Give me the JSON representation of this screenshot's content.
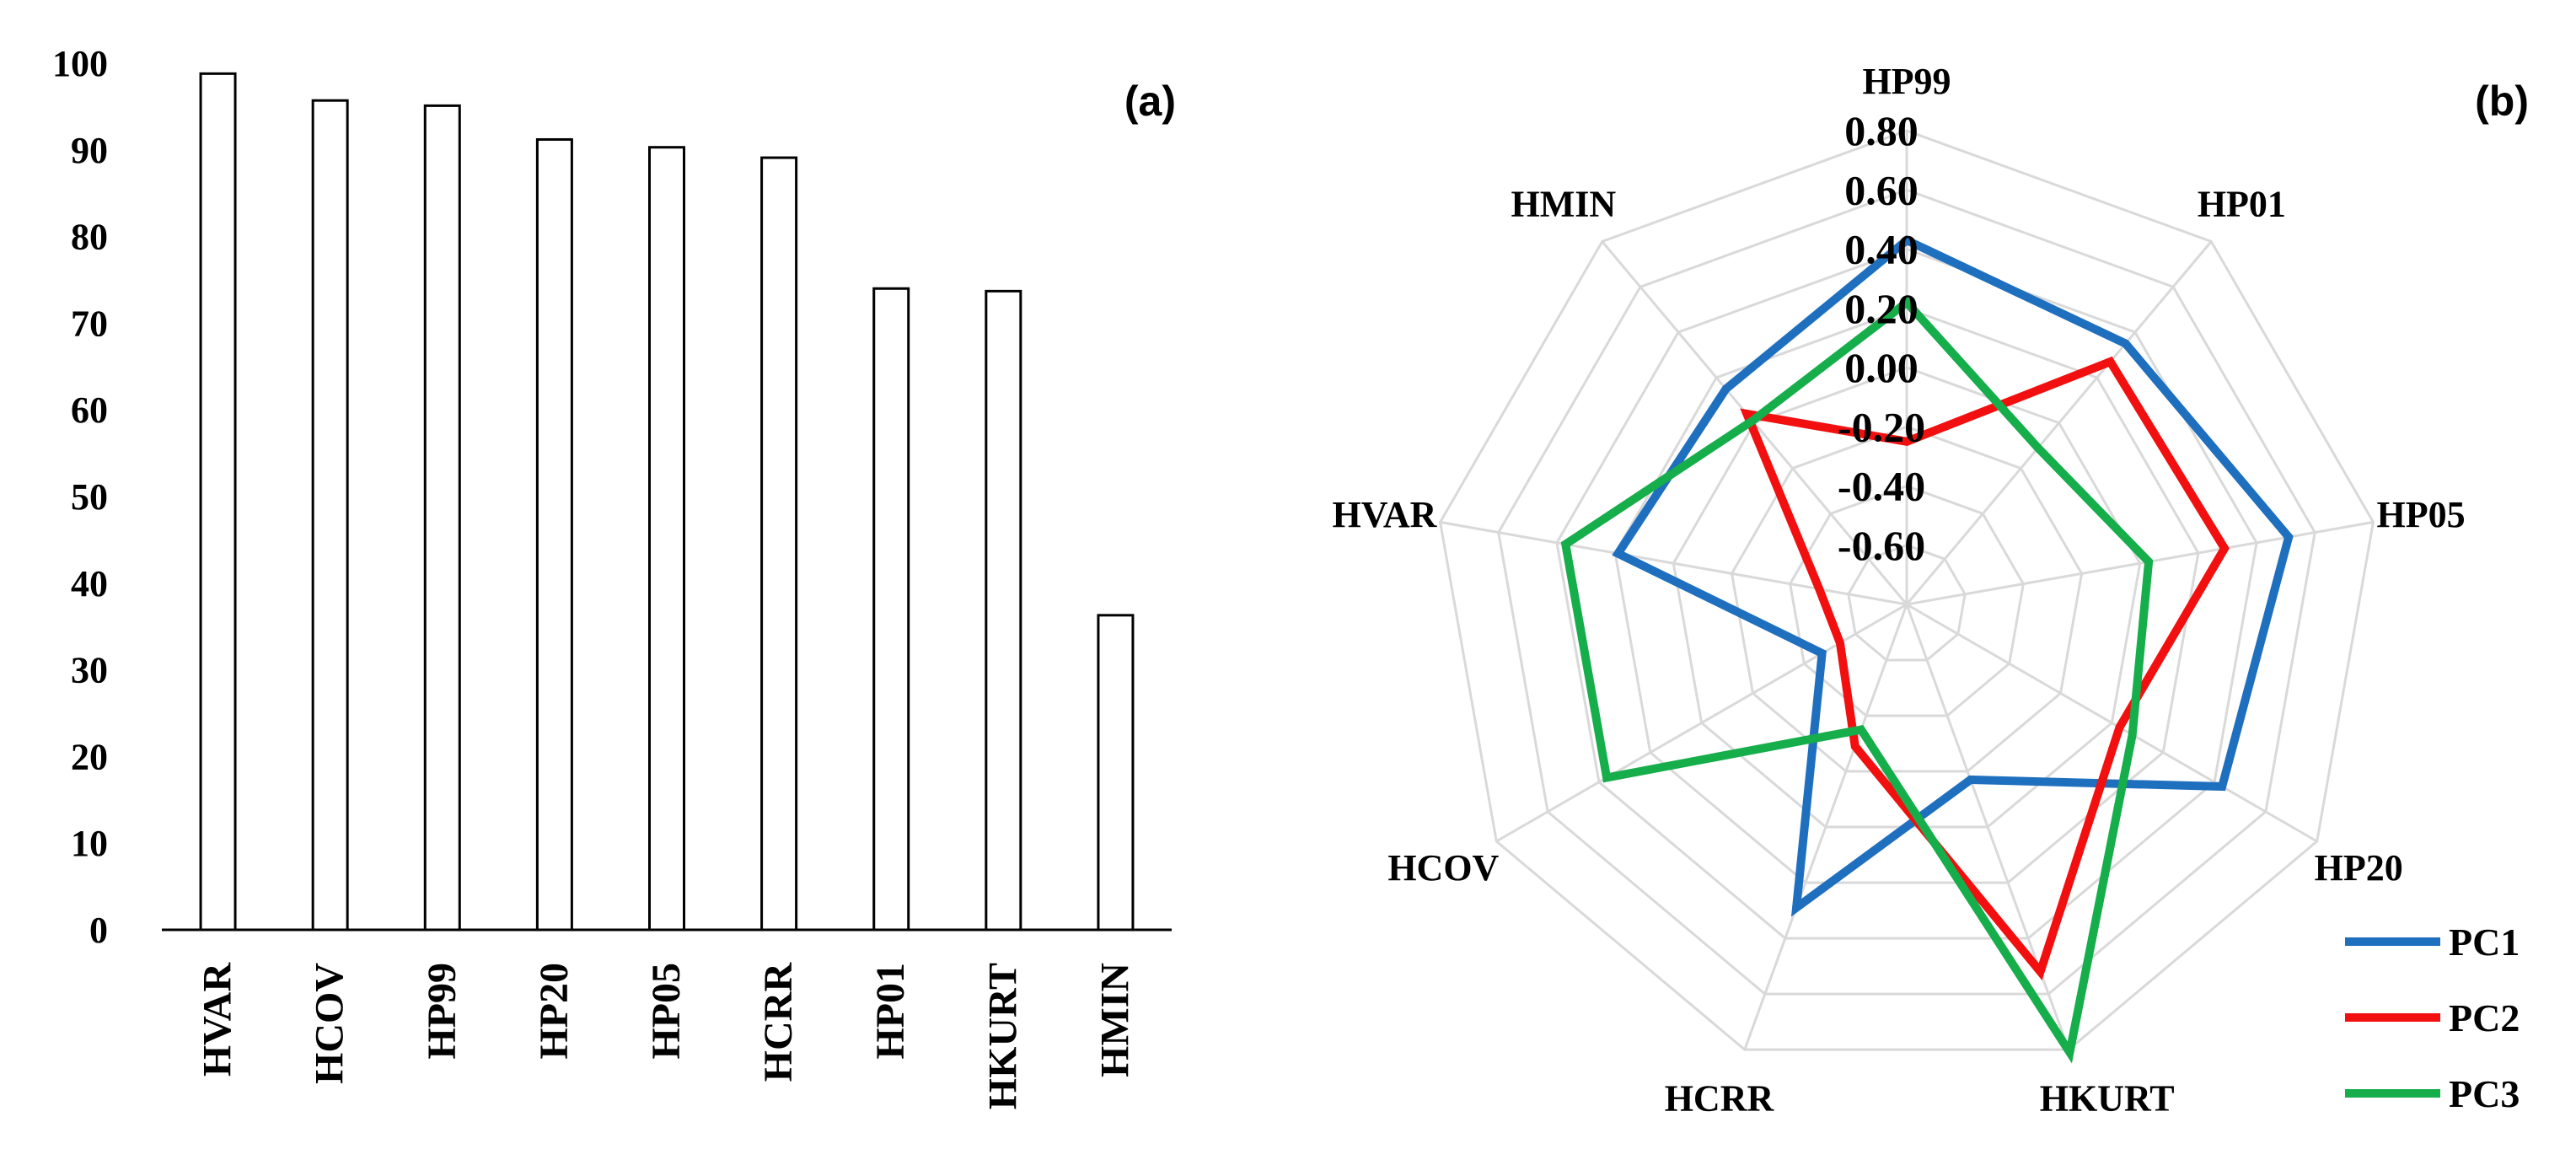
{
  "chart_data": [
    {
      "type": "bar",
      "panel_label": "(a)",
      "categories": [
        "HVAR",
        "HCOV",
        "HP99",
        "HP20",
        "HP05",
        "HCRR",
        "HP01",
        "HKURT",
        "HMIN"
      ],
      "values": [
        98.8,
        95.7,
        95.1,
        91.2,
        90.3,
        89.1,
        74.0,
        73.7,
        36.3
      ],
      "ylim": [
        0,
        100
      ],
      "yticks": [
        "0",
        "10",
        "20",
        "30",
        "40",
        "50",
        "60",
        "70",
        "80",
        "90",
        "100"
      ],
      "title": "",
      "xlabel": "",
      "ylabel": "",
      "colors": {
        "bar_fill": "#ffffff",
        "bar_stroke": "#000000"
      }
    },
    {
      "type": "radar",
      "panel_label": "(b)",
      "categories": [
        "HP99",
        "HP01",
        "HP05",
        "HP20",
        "HKURT",
        "HCRR",
        "HCOV",
        "HVAR",
        "HMIN"
      ],
      "rlim": [
        -0.8,
        0.8
      ],
      "rticks": [
        "-0.60",
        "-0.40",
        "-0.20",
        "0.00",
        "0.20",
        "0.40",
        "0.60",
        "0.80"
      ],
      "legend_position": "bottom-right",
      "series": [
        {
          "name": "PC1",
          "color": "#1f6fbf",
          "values": [
            0.43,
            0.35,
            0.51,
            0.43,
            -0.17,
            0.29,
            -0.47,
            0.19,
            0.15
          ]
        },
        {
          "name": "PC2",
          "color": "#f20f0f",
          "values": [
            -0.25,
            0.27,
            0.29,
            0.03,
            0.52,
            -0.29,
            -0.54,
            -0.5,
            0.04
          ]
        },
        {
          "name": "PC3",
          "color": "#16ad4b",
          "values": [
            0.22,
            -0.11,
            0.03,
            0.08,
            0.81,
            -0.35,
            0.37,
            0.37,
            0.01
          ]
        }
      ]
    }
  ]
}
